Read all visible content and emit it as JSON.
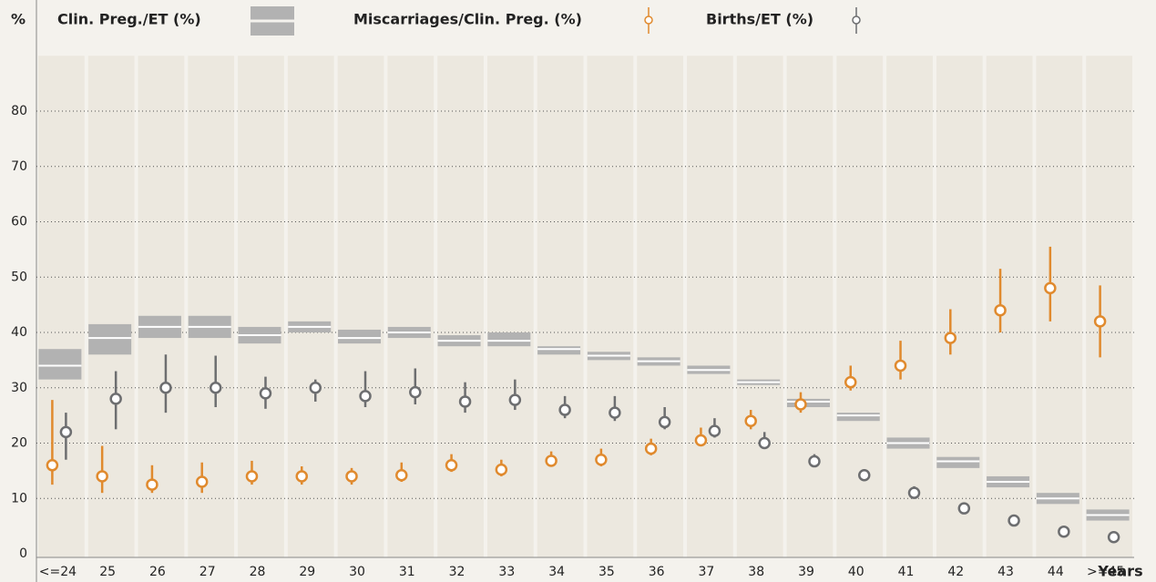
{
  "chart_data": {
    "type": "range-point",
    "y_label": "%",
    "x_label": "Years",
    "categories": [
      "<=24",
      "25",
      "26",
      "27",
      "28",
      "29",
      "30",
      "31",
      "32",
      "33",
      "34",
      "35",
      "36",
      "37",
      "38",
      "39",
      "40",
      "41",
      "42",
      "43",
      "44",
      ">=45"
    ],
    "ylim": [
      0,
      90
    ],
    "yticks": [
      0,
      10,
      20,
      30,
      40,
      50,
      60,
      70,
      80
    ],
    "grid": true,
    "series": [
      {
        "name": "Clin. Preg./ET (%)",
        "kind": "band",
        "color": "#b2b2b2",
        "values": [
          34,
          39,
          41,
          41,
          39.5,
          41,
          39,
          40,
          38.5,
          38.5,
          37,
          35.8,
          34.8,
          33.2,
          31,
          27.5,
          25,
          20,
          16.7,
          13,
          10,
          7
        ],
        "low": [
          31.5,
          36,
          39,
          39,
          38,
          40,
          38,
          39,
          37.5,
          37.5,
          36,
          35,
          34,
          32.5,
          30.5,
          26.5,
          24,
          19,
          15.5,
          12,
          9,
          6
        ],
        "high": [
          37,
          41.5,
          43,
          43,
          41,
          42,
          40.5,
          41,
          39.5,
          40,
          37.5,
          36.5,
          35.5,
          34,
          31.5,
          28,
          25.5,
          21,
          17.5,
          14,
          11,
          8
        ]
      },
      {
        "name": "Miscarriages/Clin. Preg. (%)",
        "kind": "point",
        "color": "#e08a2e",
        "values": [
          16,
          14,
          12.5,
          13,
          14,
          14,
          14,
          14.2,
          16,
          15.2,
          16.8,
          17,
          19,
          20.5,
          24,
          27,
          31,
          34,
          39,
          44,
          48,
          42
        ],
        "low": [
          12.5,
          11,
          11,
          11,
          12.5,
          12.5,
          12.5,
          13,
          14.8,
          14,
          15.8,
          15.8,
          17.8,
          19.5,
          22.5,
          25.5,
          29.5,
          31.5,
          36,
          40,
          42,
          35.5
        ],
        "high": [
          27.8,
          19.5,
          16,
          16.5,
          16.8,
          15.8,
          15.5,
          16.5,
          18,
          17,
          18.5,
          19,
          20.8,
          22.8,
          26,
          29.2,
          34,
          38.5,
          44.2,
          51.5,
          55.5,
          48.5
        ]
      },
      {
        "name": "Births/ET (%)",
        "kind": "point",
        "color": "#6d6e70",
        "values": [
          22,
          28,
          30,
          30,
          29,
          30,
          28.5,
          29.2,
          27.5,
          27.8,
          26,
          25.5,
          23.8,
          22.2,
          20,
          16.7,
          14.2,
          11,
          8.2,
          6,
          4,
          3
        ],
        "low": [
          17,
          22.5,
          25.5,
          26.5,
          26.2,
          27.5,
          26.5,
          27,
          25.5,
          26,
          24.5,
          24,
          22.5,
          21,
          19,
          16,
          13.5,
          10.2,
          7.6,
          5.5,
          3.5,
          2.5
        ],
        "high": [
          25.5,
          33,
          36,
          35.8,
          32,
          31.5,
          33,
          33.5,
          31,
          31.5,
          28.5,
          28.5,
          26.5,
          24.5,
          22,
          18,
          15.3,
          12.2,
          8.8,
          6.5,
          4.5,
          3.5
        ]
      }
    ]
  }
}
